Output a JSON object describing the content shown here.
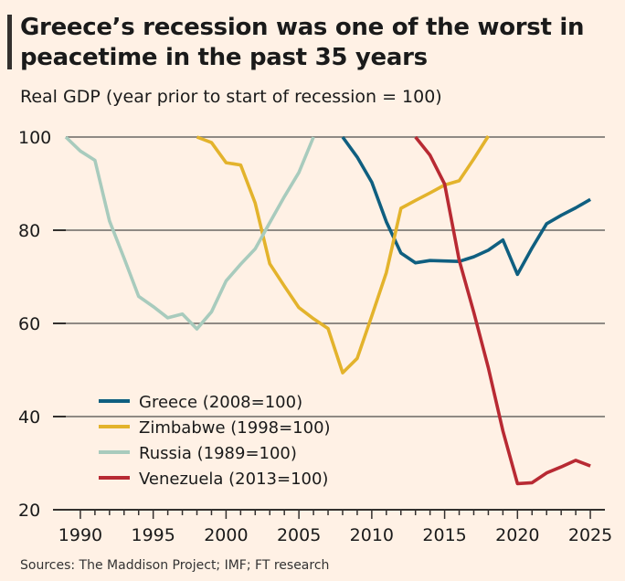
{
  "header": {
    "title": "Greece’s recession was one of the worst in peacetime in the past 35 years",
    "subtitle": "Real GDP (year prior to start of recession = 100)"
  },
  "footer": {
    "source": "Sources: The Maddison Project; IMF; FT research"
  },
  "chart_data": {
    "type": "line",
    "title": "Greece’s recession was one of the worst in peacetime in the past 35 years",
    "subtitle": "Real GDP (year prior to start of recession = 100)",
    "xlabel": "",
    "ylabel": "",
    "xlim": [
      1989,
      2026
    ],
    "ylim": [
      20,
      100
    ],
    "x_ticks": [
      1990,
      1995,
      2000,
      2005,
      2010,
      2015,
      2020,
      2025
    ],
    "y_ticks": [
      20,
      40,
      60,
      80,
      100
    ],
    "grid": "horizontal",
    "legend_position": "bottom-left",
    "background": "#fff1e5",
    "series": [
      {
        "name": "Greece (2008=100)",
        "color": "#0f5f80",
        "x": [
          2008,
          2009,
          2010,
          2011,
          2012,
          2013,
          2014,
          2015,
          2016,
          2017,
          2018,
          2019,
          2020,
          2021,
          2022,
          2023,
          2024,
          2025
        ],
        "values": [
          100,
          95.7,
          90.3,
          81.8,
          75.1,
          73.0,
          73.5,
          73.4,
          73.3,
          74.3,
          75.7,
          77.9,
          70.5,
          76.2,
          81.4,
          83.2,
          84.8,
          86.6
        ]
      },
      {
        "name": "Zimbabwe (1998=100)",
        "color": "#e3b32c",
        "x": [
          1998,
          1999,
          2000,
          2001,
          2002,
          2003,
          2004,
          2005,
          2006,
          2007,
          2008,
          2009,
          2010,
          2011,
          2012,
          2013,
          2014,
          2015,
          2016,
          2017,
          2018
        ],
        "values": [
          100,
          98.8,
          94.5,
          94.0,
          85.8,
          72.8,
          68.0,
          63.4,
          61.0,
          58.9,
          49.4,
          52.5,
          61.6,
          70.9,
          84.7,
          86.4,
          88.0,
          89.7,
          90.6,
          95.3,
          100.2
        ]
      },
      {
        "name": "Russia (1989=100)",
        "color": "#a8cbbd",
        "x": [
          1989,
          1990,
          1991,
          1992,
          1993,
          1994,
          1995,
          1996,
          1997,
          1998,
          1999,
          2000,
          2001,
          2002,
          2003,
          2004,
          2005,
          2006
        ],
        "values": [
          100,
          97.0,
          95.0,
          82.0,
          74.0,
          65.8,
          63.6,
          61.2,
          62.0,
          58.8,
          62.5,
          69.1,
          72.7,
          76.0,
          81.6,
          87.2,
          92.4,
          100.0
        ]
      },
      {
        "name": "Venezuela (2013=100)",
        "color": "#b82a33",
        "x": [
          2013,
          2014,
          2015,
          2016,
          2017,
          2018,
          2019,
          2020,
          2021,
          2022,
          2023,
          2024,
          2025
        ],
        "values": [
          100,
          96.1,
          89.9,
          73.6,
          62.4,
          50.5,
          36.9,
          25.6,
          25.8,
          27.9,
          29.2,
          30.6,
          29.4
        ]
      }
    ]
  }
}
